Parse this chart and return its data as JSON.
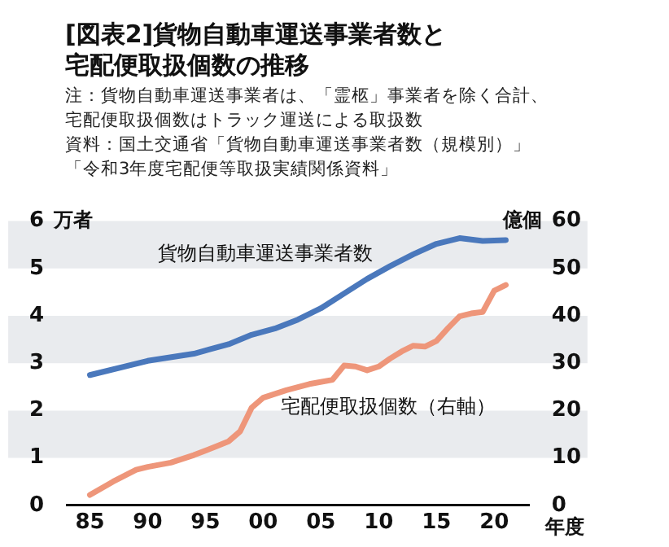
{
  "chart_data": {
    "type": "line",
    "title": "[図表2]貨物自動車運送事業者数と宅配便取扱個数の推移",
    "annotations": [
      "注：貨物自動車運送事業者は、「霊柩」事業者を除く合計、",
      "宅配便取扱個数はトラック運送による取扱数",
      "資料：国土交通省「貨物自動車運送事業者数（規模別）」",
      "「令和3年度宅配便等取扱実績関係資料」"
    ],
    "ylabel": "万者",
    "y2label": "億個",
    "xlabel": "年度",
    "series": [
      {
        "name": "貨物自動車運送事業者数",
        "color": "#4a78bc",
        "x": [
          1985,
          1990,
          1994,
          1997,
          1999,
          2001,
          2003,
          2005,
          2007,
          2009,
          2011,
          2013,
          2015,
          2017,
          2019,
          2021
        ],
        "values": [
          2.75,
          3.05,
          3.2,
          3.4,
          3.6,
          3.73,
          3.92,
          4.16,
          4.47,
          4.78,
          5.05,
          5.3,
          5.52,
          5.64,
          5.58,
          5.6
        ]
      },
      {
        "name": "宅配便取扱個数（右軸）",
        "color": "#ee967a",
        "axis": "y2",
        "x": [
          1985,
          1987,
          1989,
          1990,
          1992,
          1994,
          1996,
          1997,
          1998,
          1999,
          2000,
          2002,
          2004,
          2006,
          2007,
          2008,
          2009,
          2010,
          2011,
          2012,
          2013,
          2014,
          2015,
          2016,
          2017,
          2018,
          2019,
          2020,
          2021
        ],
        "values": [
          2.2,
          5,
          7.5,
          8.1,
          9,
          10.6,
          12.5,
          13.5,
          15.6,
          20.6,
          22.7,
          24.3,
          25.6,
          26.5,
          29.5,
          29.3,
          28.5,
          29.3,
          31,
          32.5,
          33.7,
          33.5,
          34.7,
          37.4,
          39.9,
          40.5,
          40.8,
          45.3,
          46.5
        ]
      }
    ],
    "xlim": [
      1983,
      2023
    ],
    "xticks": [
      {
        "value": 1985,
        "label": "85"
      },
      {
        "value": 1990,
        "label": "90"
      },
      {
        "value": 1995,
        "label": "95"
      },
      {
        "value": 2000,
        "label": "00"
      },
      {
        "value": 2005,
        "label": "05"
      },
      {
        "value": 2010,
        "label": "10"
      },
      {
        "value": 2015,
        "label": "15"
      },
      {
        "value": 2020,
        "label": "20"
      }
    ],
    "ylim": [
      0,
      6
    ],
    "yticks": [
      0,
      1,
      2,
      3,
      4,
      5,
      6
    ],
    "y2lim": [
      0,
      60
    ],
    "y2ticks": [
      0,
      10,
      20,
      30,
      40,
      50,
      60
    ],
    "bands": [
      {
        "axis": "y",
        "from": 1,
        "to": 2,
        "color": "#e9ebee"
      },
      {
        "axis": "y",
        "from": 3,
        "to": 4,
        "color": "#e9ebee"
      },
      {
        "axis": "y",
        "from": 5,
        "to": 6,
        "color": "#e9ebee"
      }
    ],
    "grid": false,
    "legend": false,
    "marker": "none",
    "line_style": "solid"
  }
}
